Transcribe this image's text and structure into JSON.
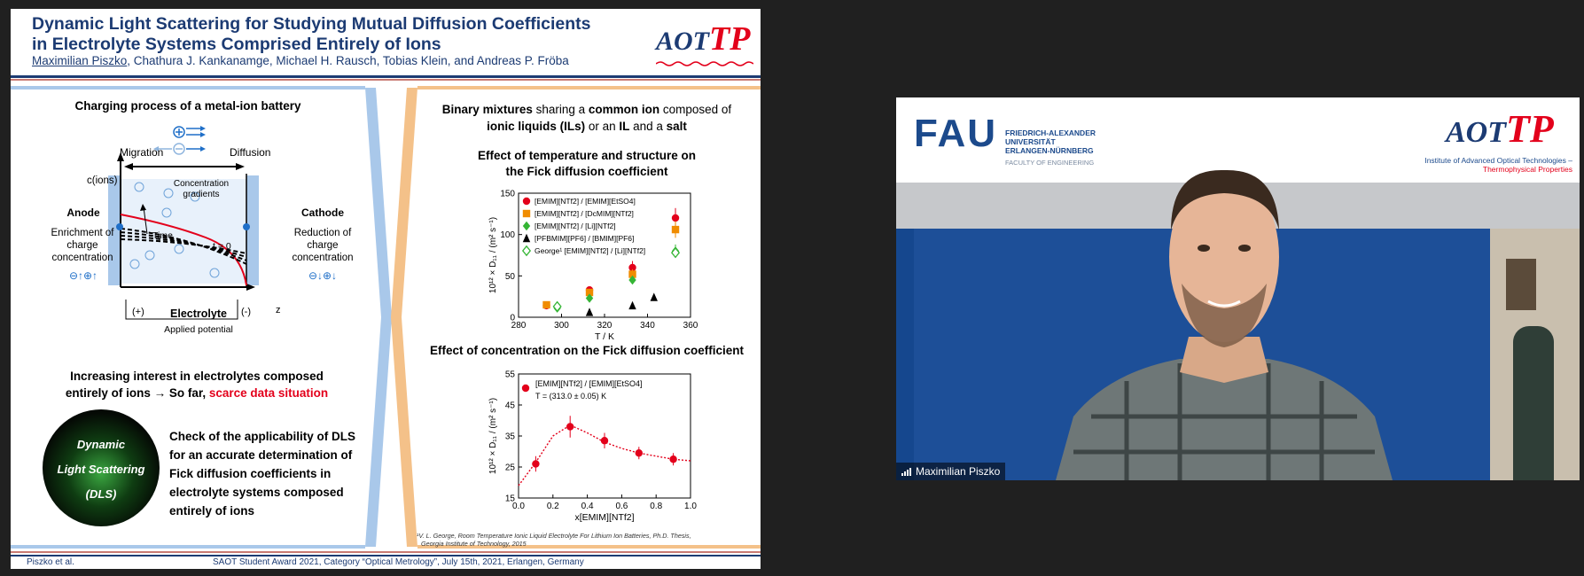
{
  "slide": {
    "title": "Dynamic Light Scattering for Studying Mutual Diffusion Coefficients in Electrolyte Systems Comprised Entirely of Ions",
    "authors": {
      "presenter": "Maximilian Piszko",
      "others": ", Chathura J. Kankanamge, Michael H. Rausch, Tobias Klein, and Andreas P. Fröba"
    },
    "logo": {
      "left": "AOT",
      "right": "TP"
    },
    "left_panel": {
      "battery_title": "Charging process of a metal-ion battery",
      "migration": "Migration",
      "diffusion": "Diffusion",
      "c_ions": "c(ions)",
      "conc_gradients_1": "Concentration",
      "conc_gradients_2": "gradients",
      "anode": "Anode",
      "anode_desc_1": "Enrichment of",
      "anode_desc_2": "charge",
      "anode_desc_3": "concentration",
      "cathode": "Cathode",
      "cathode_desc_1": "Reduction of",
      "cathode_desc_2": "charge",
      "cathode_desc_3": "concentration",
      "time": "Time",
      "t0": "t = 0",
      "z": "z",
      "plus": "(+)",
      "minus": "(-)",
      "electrolyte": "Electrolyte",
      "applied_potential": "Applied potential",
      "interest_1": "Increasing interest in electrolytes composed",
      "interest_2a": "entirely of ions → So far, ",
      "interest_2b": "scarce data situation",
      "dls_1": "Dynamic",
      "dls_2": "Light Scattering",
      "dls_3": "(DLS)",
      "check_1": "Check of the applicability of DLS",
      "check_2": "for an accurate determination of",
      "check_3": "Fick diffusion coefficients in",
      "check_4": "electrolyte systems composed",
      "check_5": "entirely of ions"
    },
    "right_panel": {
      "intro_1a": "Binary mixtures",
      "intro_1b": " sharing a ",
      "intro_1c": "common ion",
      "intro_1d": " composed of",
      "intro_2a": "ionic liquids (ILs)",
      "intro_2b": " or an ",
      "intro_2c": "IL",
      "intro_2d": " and a ",
      "intro_2e": "salt",
      "chart1_title_1": "Effect of temperature and structure on",
      "chart1_title_2": "the Fick diffusion coefficient",
      "chart2_title": "Effect of concentration on the Fick diffusion coefficient",
      "footnote_1": "¹V. L. George, Room Temperature Ionic Liquid Electrolyte For Lithium Ion Batteries, Ph.D. Thesis,",
      "footnote_2": "Georgia Institute of Technology, 2015"
    },
    "footer": {
      "left": "Piszko et al.",
      "center": "SAOT Student Award 2021, Category “Optical Metrology”, July 15th, 2021, Erlangen, Germany"
    }
  },
  "webcam": {
    "name": "Maximilian Piszko",
    "fau_logo": "FAU",
    "fau_lines": [
      "FRIEDRICH-ALEXANDER",
      "UNIVERSITÄT",
      "ERLANGEN-NÜRNBERG"
    ],
    "fau_faculty": "FACULTY OF ENGINEERING",
    "aot_logo_left": "AOT",
    "aot_logo_right": "TP",
    "institute_1": "Institute of Advanced Optical Technologies –",
    "institute_2": "Thermophysical Properties"
  },
  "chart_data": [
    {
      "type": "scatter",
      "title": "Effect of temperature and structure on the Fick diffusion coefficient",
      "xlabel": "T / K",
      "ylabel": "10¹² × D₁₁ / (m² s⁻¹)",
      "xlim": [
        280,
        360
      ],
      "ylim": [
        0,
        150
      ],
      "xticks": [
        280,
        300,
        320,
        340,
        360
      ],
      "yticks": [
        0,
        50,
        100,
        150
      ],
      "legend_position": "top-left",
      "series": [
        {
          "name": "[EMIM][NTf2] / [EMIM][EtSO4]",
          "color": "#e3001b",
          "marker": "circle",
          "x": [
            293,
            313,
            333,
            353
          ],
          "y": [
            14,
            33,
            60,
            120
          ],
          "err": [
            2,
            4,
            8,
            12
          ]
        },
        {
          "name": "[EMIM][NTf2] / [DcMIM][NTf2]",
          "color": "#f08c00",
          "marker": "square",
          "x": [
            293,
            313,
            333,
            353
          ],
          "y": [
            15,
            30,
            52,
            106
          ],
          "err": [
            1,
            3,
            6,
            10
          ]
        },
        {
          "name": "[EMIM][NTf2] / [Li][NTf2]",
          "color": "#35b535",
          "marker": "diamond",
          "x": [
            298,
            313,
            333,
            353
          ],
          "y": [
            11,
            23,
            45,
            80
          ],
          "err": [
            1,
            2,
            4,
            8
          ]
        },
        {
          "name": "[PFBMIM][PF6] / [BMIM][PF6]",
          "color": "#000000",
          "marker": "triangle",
          "x": [
            313,
            333,
            343
          ],
          "y": [
            6,
            14,
            24
          ],
          "err": [
            0,
            0,
            0
          ]
        },
        {
          "name": "George¹ [EMIM][NTf2] / [Li][NTf2]",
          "color": "#35b535",
          "marker": "open-diamond",
          "x": [
            298,
            353
          ],
          "y": [
            13,
            78
          ],
          "err": [
            0,
            0
          ]
        }
      ]
    },
    {
      "type": "scatter",
      "title": "Effect of concentration on the Fick diffusion coefficient",
      "xlabel": "x[EMIM][NTf2]",
      "ylabel": "10¹² × D₁₁ / (m² s⁻¹)",
      "xlim": [
        0.0,
        1.0
      ],
      "ylim": [
        15,
        55
      ],
      "xticks": [
        0.0,
        0.2,
        0.4,
        0.6,
        0.8,
        1.0
      ],
      "yticks": [
        15,
        25,
        35,
        45,
        55
      ],
      "legend": "[EMIM][NTf2] / [EMIM][EtSO4]",
      "legend_note": "T = (313.0 ± 0.05) K",
      "series": [
        {
          "name": "[EMIM][NTf2] / [EMIM][EtSO4]",
          "color": "#e3001b",
          "marker": "circle",
          "x": [
            0.1,
            0.3,
            0.5,
            0.7,
            0.9
          ],
          "y": [
            26,
            38,
            33.5,
            29.5,
            27.5
          ],
          "err": [
            2.5,
            3.5,
            2.5,
            2,
            2
          ]
        }
      ],
      "fit_line": {
        "x": [
          0.0,
          0.1,
          0.2,
          0.3,
          0.4,
          0.5,
          0.6,
          0.7,
          0.8,
          0.9,
          1.0
        ],
        "y": [
          19,
          26.5,
          35,
          38.5,
          36,
          33,
          31,
          29.5,
          28.5,
          27.5,
          27
        ]
      }
    }
  ]
}
